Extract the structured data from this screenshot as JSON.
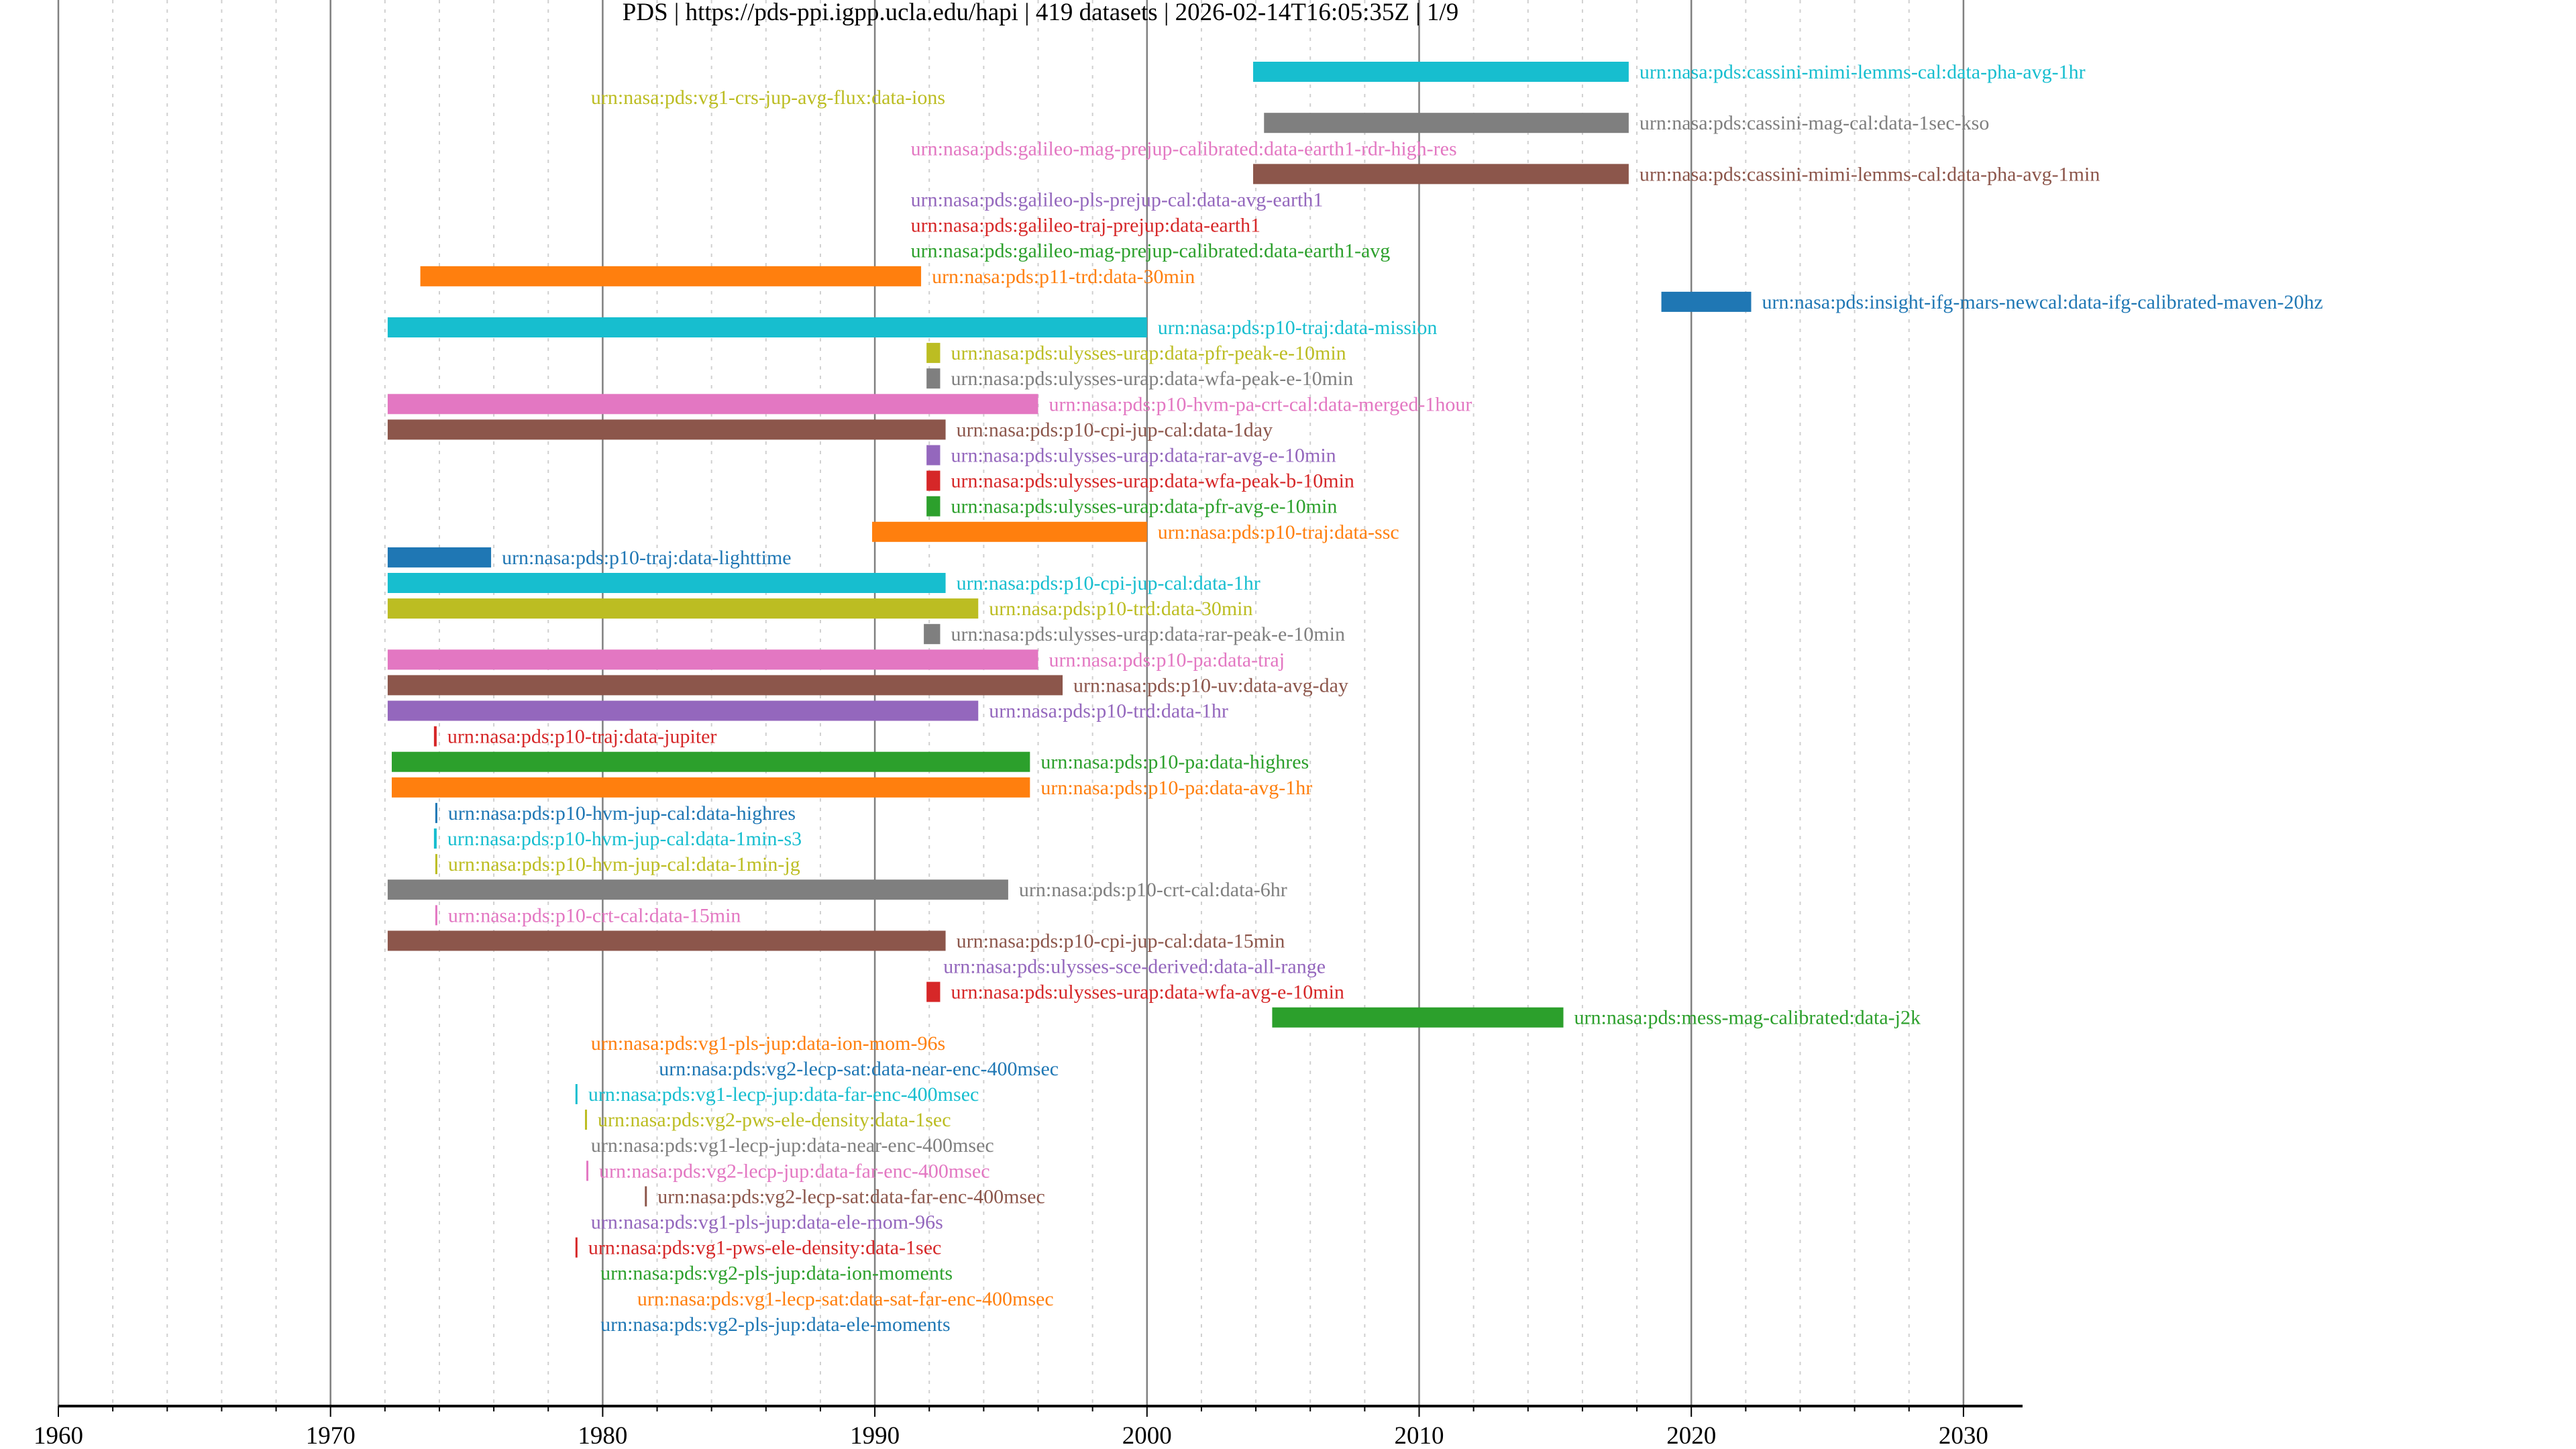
{
  "chart_data": {
    "type": "timeline",
    "title": "PDS | https://pds-ppi.igpp.ucla.edu/hapi | 419 datasets | 2026-02-14T16:05:35Z | 1/9",
    "xlabel": "",
    "ylabel": "",
    "xlim": [
      1960,
      2031
    ],
    "x_ticks": [
      "1960",
      "1970",
      "1980",
      "1990",
      "2000",
      "2010",
      "2020",
      "2030"
    ],
    "grid": {
      "major": "solid, every 10 years",
      "minor": "dotted, every 2 years"
    },
    "rows": [
      {
        "label": "urn:nasa:pds:cassini-mimi-lemms-cal:data-pha-avg-1hr",
        "start": 2003.9,
        "end": 2017.7,
        "color": "#17becf"
      },
      {
        "label": "urn:nasa:pds:vg1-crs-jup-avg-flux:data-ions",
        "start": 1979.1,
        "end": 1979.1,
        "color": "#bcbd22"
      },
      {
        "label": "urn:nasa:pds:cassini-mag-cal:data-1sec-kso",
        "start": 2004.3,
        "end": 2017.7,
        "color": "#7f7f7f"
      },
      {
        "label": "urn:nasa:pds:galileo-mag-prejup-calibrated:data-earth1-rdr-high-res",
        "start": 1990.85,
        "end": 1990.85,
        "color": "#e377c2"
      },
      {
        "label": "urn:nasa:pds:cassini-mimi-lemms-cal:data-pha-avg-1min",
        "start": 2003.9,
        "end": 2017.7,
        "color": "#8c564b"
      },
      {
        "label": "urn:nasa:pds:galileo-pls-prejup-cal:data-avg-earth1",
        "start": 1990.85,
        "end": 1990.85,
        "color": "#9467bd"
      },
      {
        "label": "urn:nasa:pds:galileo-traj-prejup:data-earth1",
        "start": 1990.85,
        "end": 1990.85,
        "color": "#d62728"
      },
      {
        "label": "urn:nasa:pds:galileo-mag-prejup-calibrated:data-earth1-avg",
        "start": 1990.85,
        "end": 1990.85,
        "color": "#2ca02c"
      },
      {
        "label": "urn:nasa:pds:p11-trd:data-30min",
        "start": 1973.3,
        "end": 1991.7,
        "color": "#ff7f0e"
      },
      {
        "label": "urn:nasa:pds:insight-ifg-mars-newcal:data-ifg-calibrated-maven-20hz",
        "start": 2018.9,
        "end": 2022.2,
        "color": "#1f77b4"
      },
      {
        "label": "urn:nasa:pds:p10-traj:data-mission",
        "start": 1972.1,
        "end": 2000.0,
        "color": "#17becf"
      },
      {
        "label": "urn:nasa:pds:ulysses-urap:data-pfr-peak-e-10min",
        "start": 1991.9,
        "end": 1992.4,
        "color": "#bcbd22"
      },
      {
        "label": "urn:nasa:pds:ulysses-urap:data-wfa-peak-e-10min",
        "start": 1991.9,
        "end": 1992.4,
        "color": "#7f7f7f"
      },
      {
        "label": "urn:nasa:pds:p10-hvm-pa-crt-cal:data-merged-1hour",
        "start": 1972.1,
        "end": 1996.0,
        "color": "#e377c2"
      },
      {
        "label": "urn:nasa:pds:p10-cpi-jup-cal:data-1day",
        "start": 1972.1,
        "end": 1992.6,
        "color": "#8c564b"
      },
      {
        "label": "urn:nasa:pds:ulysses-urap:data-rar-avg-e-10min",
        "start": 1991.9,
        "end": 1992.4,
        "color": "#9467bd"
      },
      {
        "label": "urn:nasa:pds:ulysses-urap:data-wfa-peak-b-10min",
        "start": 1991.9,
        "end": 1992.4,
        "color": "#d62728"
      },
      {
        "label": "urn:nasa:pds:ulysses-urap:data-pfr-avg-e-10min",
        "start": 1991.9,
        "end": 1992.4,
        "color": "#2ca02c"
      },
      {
        "label": "urn:nasa:pds:p10-traj:data-ssc",
        "start": 1989.9,
        "end": 2000.0,
        "color": "#ff7f0e"
      },
      {
        "label": "urn:nasa:pds:p10-traj:data-lighttime",
        "start": 1972.1,
        "end": 1975.9,
        "color": "#1f77b4"
      },
      {
        "label": "urn:nasa:pds:p10-cpi-jup-cal:data-1hr",
        "start": 1972.1,
        "end": 1992.6,
        "color": "#17becf"
      },
      {
        "label": "urn:nasa:pds:p10-trd:data-30min",
        "start": 1972.1,
        "end": 1993.8,
        "color": "#bcbd22"
      },
      {
        "label": "urn:nasa:pds:ulysses-urap:data-rar-peak-e-10min",
        "start": 1991.8,
        "end": 1992.4,
        "color": "#7f7f7f"
      },
      {
        "label": "urn:nasa:pds:p10-pa:data-traj",
        "start": 1972.1,
        "end": 1996.0,
        "color": "#e377c2"
      },
      {
        "label": "urn:nasa:pds:p10-uv:data-avg-day",
        "start": 1972.1,
        "end": 1996.9,
        "color": "#8c564b"
      },
      {
        "label": "urn:nasa:pds:p10-trd:data-1hr",
        "start": 1972.1,
        "end": 1993.8,
        "color": "#9467bd"
      },
      {
        "label": "urn:nasa:pds:p10-traj:data-jupiter",
        "start": 1973.8,
        "end": 1973.9,
        "color": "#d62728"
      },
      {
        "label": "urn:nasa:pds:p10-pa:data-highres",
        "start": 1972.25,
        "end": 1995.7,
        "color": "#2ca02c"
      },
      {
        "label": "urn:nasa:pds:p10-pa:data-avg-1hr",
        "start": 1972.25,
        "end": 1995.7,
        "color": "#ff7f0e"
      },
      {
        "label": "urn:nasa:pds:p10-hvm-jup-cal:data-highres",
        "start": 1973.85,
        "end": 1973.9,
        "color": "#1f77b4"
      },
      {
        "label": "urn:nasa:pds:p10-hvm-jup-cal:data-1min-s3",
        "start": 1973.8,
        "end": 1973.9,
        "color": "#17becf"
      },
      {
        "label": "urn:nasa:pds:p10-hvm-jup-cal:data-1min-jg",
        "start": 1973.85,
        "end": 1973.9,
        "color": "#bcbd22"
      },
      {
        "label": "urn:nasa:pds:p10-crt-cal:data-6hr",
        "start": 1972.1,
        "end": 1994.9,
        "color": "#7f7f7f"
      },
      {
        "label": "urn:nasa:pds:p10-crt-cal:data-15min",
        "start": 1973.85,
        "end": 1973.9,
        "color": "#e377c2"
      },
      {
        "label": "urn:nasa:pds:p10-cpi-jup-cal:data-15min",
        "start": 1972.1,
        "end": 1992.6,
        "color": "#8c564b"
      },
      {
        "label": "urn:nasa:pds:ulysses-sce-derived:data-all-range",
        "start": 1992.05,
        "end": 1992.05,
        "color": "#9467bd"
      },
      {
        "label": "urn:nasa:pds:ulysses-urap:data-wfa-avg-e-10min",
        "start": 1991.9,
        "end": 1992.4,
        "color": "#d62728"
      },
      {
        "label": "urn:nasa:pds:mess-mag-calibrated:data-j2k",
        "start": 2004.6,
        "end": 2015.3,
        "color": "#2ca02c"
      },
      {
        "label": "urn:nasa:pds:vg1-pls-jup:data-ion-mom-96s",
        "start": 1979.1,
        "end": 1979.1,
        "color": "#ff7f0e"
      },
      {
        "label": "urn:nasa:pds:vg2-lecp-sat:data-near-enc-400msec",
        "start": 1981.6,
        "end": 1981.6,
        "color": "#1f77b4"
      },
      {
        "label": "urn:nasa:pds:vg1-lecp-jup:data-far-enc-400msec",
        "start": 1979.0,
        "end": 1979.05,
        "color": "#17becf"
      },
      {
        "label": "urn:nasa:pds:vg2-pws-ele-density:data-1sec",
        "start": 1979.35,
        "end": 1979.4,
        "color": "#bcbd22"
      },
      {
        "label": "urn:nasa:pds:vg1-lecp-jup:data-near-enc-400msec",
        "start": 1979.1,
        "end": 1979.1,
        "color": "#7f7f7f"
      },
      {
        "label": "urn:nasa:pds:vg2-lecp-jup:data-far-enc-400msec",
        "start": 1979.4,
        "end": 1979.45,
        "color": "#e377c2"
      },
      {
        "label": "urn:nasa:pds:vg2-lecp-sat:data-far-enc-400msec",
        "start": 1981.55,
        "end": 1981.6,
        "color": "#8c564b"
      },
      {
        "label": "urn:nasa:pds:vg1-pls-jup:data-ele-mom-96s",
        "start": 1979.1,
        "end": 1979.1,
        "color": "#9467bd"
      },
      {
        "label": "urn:nasa:pds:vg1-pws-ele-density:data-1sec",
        "start": 1979.0,
        "end": 1979.05,
        "color": "#d62728"
      },
      {
        "label": "urn:nasa:pds:vg2-pls-jup:data-ion-moments",
        "start": 1979.45,
        "end": 1979.45,
        "color": "#2ca02c"
      },
      {
        "label": "urn:nasa:pds:vg1-lecp-sat:data-sat-far-enc-400msec",
        "start": 1980.8,
        "end": 1980.8,
        "color": "#ff7f0e"
      },
      {
        "label": "urn:nasa:pds:vg2-pls-jup:data-ele-moments",
        "start": 1979.45,
        "end": 1979.45,
        "color": "#1f77b4"
      }
    ]
  }
}
